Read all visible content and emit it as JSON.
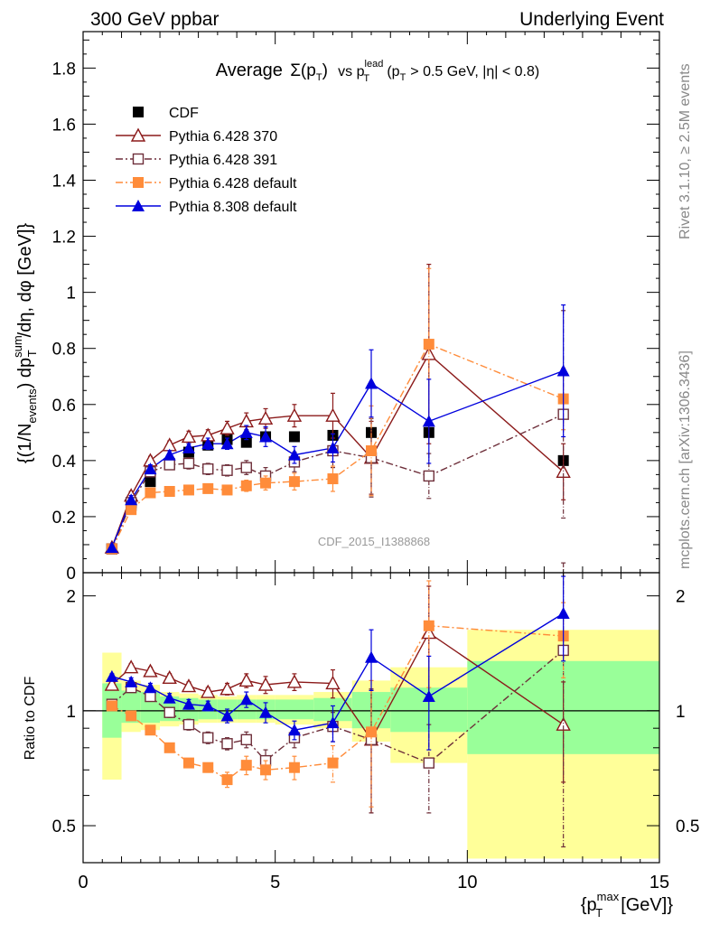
{
  "header": {
    "left_label": "300 GeV ppbar",
    "right_label": "Underlying Event"
  },
  "side_labels": {
    "rivet": "Rivet 3.1.10, ≥ 2.5M events",
    "mcplots": "mcplots.cern.ch [arXiv:1306.3436]"
  },
  "chart_data": [
    {
      "type": "scatter",
      "panel": "main",
      "title_parts": {
        "average": "Average",
        "sigma": "Σ(p",
        "sigma_sub": "T",
        "sigma_close": ")",
        "vs": "vs p",
        "vs_sup": "lead",
        "vs_sub": "T",
        "cut_open": "(p",
        "cut_sub": "T",
        "cut_rest": "> 0.5 GeV, |η| < 0.8)"
      },
      "ylabel_parts": {
        "a": "{(1/N",
        "a_sub": "events",
        "b": ") dp",
        "b_sup": "sum",
        "b_sub": "T",
        "c": "/dη, dφ [GeV]}"
      },
      "watermark": "CDF_2015_I1388868",
      "xlim": [
        0,
        15
      ],
      "ylim": [
        0,
        1.93
      ],
      "yticks": [
        "0",
        "0.2",
        "0.4",
        "0.6",
        "0.8",
        "1",
        "1.2",
        "1.4",
        "1.6",
        "1.8"
      ],
      "legend_position": "top-left",
      "series": [
        {
          "name": "CDF",
          "color": "#000000",
          "marker": "filled-square",
          "line": "none",
          "points": [
            {
              "x": 0.75,
              "y": 0.085,
              "err": 0.01
            },
            {
              "x": 1.25,
              "y": 0.24,
              "err": 0.01
            },
            {
              "x": 1.75,
              "y": 0.325,
              "err": 0.01
            },
            {
              "x": 2.25,
              "y": 0.39,
              "err": 0.01
            },
            {
              "x": 2.75,
              "y": 0.43,
              "err": 0.01
            },
            {
              "x": 3.25,
              "y": 0.455,
              "err": 0.01
            },
            {
              "x": 3.75,
              "y": 0.475,
              "err": 0.01
            },
            {
              "x": 4.25,
              "y": 0.465,
              "err": 0.01
            },
            {
              "x": 4.75,
              "y": 0.485,
              "err": 0.01
            },
            {
              "x": 5.5,
              "y": 0.485,
              "err": 0.01
            },
            {
              "x": 6.5,
              "y": 0.49,
              "err": 0.01
            },
            {
              "x": 7.5,
              "y": 0.5,
              "err": 0.01
            },
            {
              "x": 9.0,
              "y": 0.5,
              "err": 0.01
            },
            {
              "x": 12.5,
              "y": 0.4,
              "err": 0.01
            }
          ]
        },
        {
          "name": "Pythia 6.428 370",
          "color": "#8b1a1a",
          "marker": "open-triangle",
          "line": "solid",
          "points": [
            {
              "x": 0.75,
              "y": 0.09,
              "err": 0.01
            },
            {
              "x": 1.25,
              "y": 0.275,
              "err": 0.015
            },
            {
              "x": 1.75,
              "y": 0.4,
              "err": 0.015
            },
            {
              "x": 2.25,
              "y": 0.455,
              "err": 0.015
            },
            {
              "x": 2.75,
              "y": 0.485,
              "err": 0.02
            },
            {
              "x": 3.25,
              "y": 0.49,
              "err": 0.02
            },
            {
              "x": 3.75,
              "y": 0.515,
              "err": 0.025
            },
            {
              "x": 4.25,
              "y": 0.54,
              "err": 0.03
            },
            {
              "x": 4.75,
              "y": 0.55,
              "err": 0.035
            },
            {
              "x": 5.5,
              "y": 0.56,
              "err": 0.04
            },
            {
              "x": 6.5,
              "y": 0.56,
              "err": 0.08
            },
            {
              "x": 7.5,
              "y": 0.41,
              "err": 0.13
            },
            {
              "x": 9.0,
              "y": 0.78,
              "err": 0.32
            },
            {
              "x": 12.5,
              "y": 0.36,
              "err": 0.1
            }
          ]
        },
        {
          "name": "Pythia 6.428 391",
          "color": "#6e2f3a",
          "marker": "open-square",
          "line": "dashdot",
          "points": [
            {
              "x": 0.75,
              "y": 0.085,
              "err": 0.01
            },
            {
              "x": 1.25,
              "y": 0.25,
              "err": 0.015
            },
            {
              "x": 1.75,
              "y": 0.36,
              "err": 0.015
            },
            {
              "x": 2.25,
              "y": 0.385,
              "err": 0.015
            },
            {
              "x": 2.75,
              "y": 0.39,
              "err": 0.02
            },
            {
              "x": 3.25,
              "y": 0.37,
              "err": 0.02
            },
            {
              "x": 3.75,
              "y": 0.365,
              "err": 0.02
            },
            {
              "x": 4.25,
              "y": 0.375,
              "err": 0.025
            },
            {
              "x": 4.75,
              "y": 0.345,
              "err": 0.03
            },
            {
              "x": 5.5,
              "y": 0.395,
              "err": 0.035
            },
            {
              "x": 6.5,
              "y": 0.435,
              "err": 0.06
            },
            {
              "x": 7.5,
              "y": 0.41,
              "err": 0.14
            },
            {
              "x": 9.0,
              "y": 0.345,
              "err": 0.08
            },
            {
              "x": 12.5,
              "y": 0.565,
              "err": 0.37
            }
          ]
        },
        {
          "name": "Pythia 6.428 default",
          "color": "#ff8c3a",
          "marker": "filled-square",
          "line": "dashdot",
          "points": [
            {
              "x": 0.75,
              "y": 0.085,
              "err": 0.01
            },
            {
              "x": 1.25,
              "y": 0.225,
              "err": 0.01
            },
            {
              "x": 1.75,
              "y": 0.285,
              "err": 0.01
            },
            {
              "x": 2.25,
              "y": 0.29,
              "err": 0.01
            },
            {
              "x": 2.75,
              "y": 0.295,
              "err": 0.01
            },
            {
              "x": 3.25,
              "y": 0.3,
              "err": 0.015
            },
            {
              "x": 3.75,
              "y": 0.295,
              "err": 0.015
            },
            {
              "x": 4.25,
              "y": 0.31,
              "err": 0.02
            },
            {
              "x": 4.75,
              "y": 0.32,
              "err": 0.025
            },
            {
              "x": 5.5,
              "y": 0.325,
              "err": 0.03
            },
            {
              "x": 6.5,
              "y": 0.335,
              "err": 0.045
            },
            {
              "x": 7.5,
              "y": 0.435,
              "err": 0.16
            },
            {
              "x": 9.0,
              "y": 0.815,
              "err": 0.27
            },
            {
              "x": 12.5,
              "y": 0.62,
              "err": 0.11
            }
          ]
        },
        {
          "name": "Pythia 8.308 default",
          "color": "#0000dd",
          "marker": "filled-triangle",
          "line": "solid",
          "points": [
            {
              "x": 0.75,
              "y": 0.09,
              "err": 0.01
            },
            {
              "x": 1.25,
              "y": 0.26,
              "err": 0.015
            },
            {
              "x": 1.75,
              "y": 0.37,
              "err": 0.015
            },
            {
              "x": 2.25,
              "y": 0.42,
              "err": 0.015
            },
            {
              "x": 2.75,
              "y": 0.445,
              "err": 0.015
            },
            {
              "x": 3.25,
              "y": 0.46,
              "err": 0.02
            },
            {
              "x": 3.75,
              "y": 0.46,
              "err": 0.02
            },
            {
              "x": 4.25,
              "y": 0.5,
              "err": 0.025
            },
            {
              "x": 4.75,
              "y": 0.485,
              "err": 0.035
            },
            {
              "x": 5.5,
              "y": 0.42,
              "err": 0.03
            },
            {
              "x": 6.5,
              "y": 0.445,
              "err": 0.05
            },
            {
              "x": 7.5,
              "y": 0.675,
              "err": 0.12
            },
            {
              "x": 9.0,
              "y": 0.54,
              "err": 0.15
            },
            {
              "x": 12.5,
              "y": 0.72,
              "err": 0.235
            }
          ]
        }
      ]
    },
    {
      "type": "scatter",
      "panel": "ratio",
      "ylabel": "Ratio to CDF",
      "xlabel_parts": {
        "a": "{p",
        "a_sup": "max",
        "a_sub": "T",
        "b": "[GeV]}"
      },
      "xlim": [
        0,
        15
      ],
      "ylim": [
        0.4,
        2.3
      ],
      "xticks": [
        "0",
        "5",
        "10",
        "15"
      ],
      "yticks": [
        "0.5",
        "1",
        "2"
      ],
      "reference_line": 1,
      "bands": [
        {
          "x0": 0.5,
          "x1": 1.0,
          "inner": [
            0.85,
            1.18
          ],
          "outer": [
            0.66,
            1.42
          ]
        },
        {
          "x0": 1.0,
          "x1": 1.5,
          "inner": [
            0.93,
            1.13
          ],
          "outer": [
            0.88,
            1.2
          ]
        },
        {
          "x0": 1.5,
          "x1": 2.0,
          "inner": [
            0.93,
            1.12
          ],
          "outer": [
            0.89,
            1.17
          ]
        },
        {
          "x0": 2.0,
          "x1": 2.5,
          "inner": [
            0.94,
            1.09
          ],
          "outer": [
            0.91,
            1.12
          ]
        },
        {
          "x0": 2.5,
          "x1": 3.0,
          "inner": [
            0.94,
            1.08
          ],
          "outer": [
            0.92,
            1.11
          ]
        },
        {
          "x0": 3.0,
          "x1": 3.5,
          "inner": [
            0.95,
            1.07
          ],
          "outer": [
            0.93,
            1.1
          ]
        },
        {
          "x0": 3.5,
          "x1": 4.0,
          "inner": [
            0.95,
            1.07
          ],
          "outer": [
            0.93,
            1.09
          ]
        },
        {
          "x0": 4.0,
          "x1": 4.5,
          "inner": [
            0.95,
            1.07
          ],
          "outer": [
            0.93,
            1.1
          ]
        },
        {
          "x0": 4.5,
          "x1": 5.0,
          "inner": [
            0.95,
            1.07
          ],
          "outer": [
            0.93,
            1.1
          ]
        },
        {
          "x0": 5.0,
          "x1": 6.0,
          "inner": [
            0.95,
            1.07
          ],
          "outer": [
            0.92,
            1.1
          ]
        },
        {
          "x0": 6.0,
          "x1": 7.0,
          "inner": [
            0.94,
            1.08
          ],
          "outer": [
            0.9,
            1.12
          ]
        },
        {
          "x0": 7.0,
          "x1": 8.0,
          "inner": [
            0.9,
            1.12
          ],
          "outer": [
            0.83,
            1.2
          ]
        },
        {
          "x0": 8.0,
          "x1": 10.0,
          "inner": [
            0.88,
            1.15
          ],
          "outer": [
            0.73,
            1.3
          ]
        },
        {
          "x0": 10.0,
          "x1": 15.0,
          "inner": [
            0.77,
            1.35
          ],
          "outer": [
            0.41,
            1.63
          ]
        }
      ],
      "series": [
        {
          "name": "Pythia 6.428 370",
          "color": "#8b1a1a",
          "marker": "open-triangle",
          "line": "solid",
          "points": [
            {
              "x": 0.75,
              "y": 1.17,
              "err": 0.02
            },
            {
              "x": 1.25,
              "y": 1.3,
              "err": 0.03
            },
            {
              "x": 1.75,
              "y": 1.27,
              "err": 0.03
            },
            {
              "x": 2.25,
              "y": 1.22,
              "err": 0.03
            },
            {
              "x": 2.75,
              "y": 1.16,
              "err": 0.03
            },
            {
              "x": 3.25,
              "y": 1.12,
              "err": 0.03
            },
            {
              "x": 3.75,
              "y": 1.14,
              "err": 0.04
            },
            {
              "x": 4.25,
              "y": 1.2,
              "err": 0.05
            },
            {
              "x": 4.75,
              "y": 1.17,
              "err": 0.06
            },
            {
              "x": 5.5,
              "y": 1.19,
              "err": 0.06
            },
            {
              "x": 6.5,
              "y": 1.18,
              "err": 0.1
            },
            {
              "x": 7.5,
              "y": 0.84,
              "err": 0.3
            },
            {
              "x": 9.0,
              "y": 1.6,
              "err": 0.52
            },
            {
              "x": 12.5,
              "y": 0.92,
              "err": 0.27
            }
          ]
        },
        {
          "name": "Pythia 6.428 391",
          "color": "#6e2f3a",
          "marker": "open-square",
          "line": "dashdot",
          "points": [
            {
              "x": 0.75,
              "y": 1.04,
              "err": 0.02
            },
            {
              "x": 1.25,
              "y": 1.15,
              "err": 0.03
            },
            {
              "x": 1.75,
              "y": 1.09,
              "err": 0.03
            },
            {
              "x": 2.25,
              "y": 0.99,
              "err": 0.03
            },
            {
              "x": 2.75,
              "y": 0.92,
              "err": 0.03
            },
            {
              "x": 3.25,
              "y": 0.85,
              "err": 0.03
            },
            {
              "x": 3.75,
              "y": 0.82,
              "err": 0.03
            },
            {
              "x": 4.25,
              "y": 0.84,
              "err": 0.04
            },
            {
              "x": 4.75,
              "y": 0.74,
              "err": 0.05
            },
            {
              "x": 5.5,
              "y": 0.85,
              "err": 0.05
            },
            {
              "x": 6.5,
              "y": 0.91,
              "err": 0.08
            },
            {
              "x": 7.5,
              "y": 0.84,
              "err": 0.3
            },
            {
              "x": 9.0,
              "y": 0.73,
              "err": 0.19
            },
            {
              "x": 12.5,
              "y": 1.44,
              "err": 1.0
            }
          ]
        },
        {
          "name": "Pythia 6.428 default",
          "color": "#ff8c3a",
          "marker": "filled-square",
          "line": "dashdot",
          "points": [
            {
              "x": 0.75,
              "y": 1.03,
              "err": 0.02
            },
            {
              "x": 1.25,
              "y": 0.97,
              "err": 0.02
            },
            {
              "x": 1.75,
              "y": 0.89,
              "err": 0.02
            },
            {
              "x": 2.25,
              "y": 0.8,
              "err": 0.02
            },
            {
              "x": 2.75,
              "y": 0.73,
              "err": 0.02
            },
            {
              "x": 3.25,
              "y": 0.71,
              "err": 0.02
            },
            {
              "x": 3.75,
              "y": 0.66,
              "err": 0.03
            },
            {
              "x": 4.25,
              "y": 0.72,
              "err": 0.04
            },
            {
              "x": 4.75,
              "y": 0.7,
              "err": 0.04
            },
            {
              "x": 5.5,
              "y": 0.71,
              "err": 0.05
            },
            {
              "x": 6.5,
              "y": 0.73,
              "err": 0.08
            },
            {
              "x": 7.5,
              "y": 0.88,
              "err": 0.32
            },
            {
              "x": 9.0,
              "y": 1.67,
              "err": 0.52
            },
            {
              "x": 12.5,
              "y": 1.57,
              "err": 0.35
            }
          ]
        },
        {
          "name": "Pythia 8.308 default",
          "color": "#0000dd",
          "marker": "filled-triangle",
          "line": "solid",
          "points": [
            {
              "x": 0.75,
              "y": 1.23,
              "err": 0.02
            },
            {
              "x": 1.25,
              "y": 1.19,
              "err": 0.03
            },
            {
              "x": 1.75,
              "y": 1.15,
              "err": 0.03
            },
            {
              "x": 2.25,
              "y": 1.08,
              "err": 0.03
            },
            {
              "x": 2.75,
              "y": 1.04,
              "err": 0.03
            },
            {
              "x": 3.25,
              "y": 1.03,
              "err": 0.03
            },
            {
              "x": 3.75,
              "y": 0.97,
              "err": 0.04
            },
            {
              "x": 4.25,
              "y": 1.07,
              "err": 0.05
            },
            {
              "x": 4.75,
              "y": 0.99,
              "err": 0.06
            },
            {
              "x": 5.5,
              "y": 0.89,
              "err": 0.05
            },
            {
              "x": 6.5,
              "y": 0.93,
              "err": 0.1
            },
            {
              "x": 7.5,
              "y": 1.38,
              "err": 0.25
            },
            {
              "x": 9.0,
              "y": 1.09,
              "err": 0.3
            },
            {
              "x": 12.5,
              "y": 1.8,
              "err": 0.45
            }
          ]
        }
      ]
    }
  ]
}
